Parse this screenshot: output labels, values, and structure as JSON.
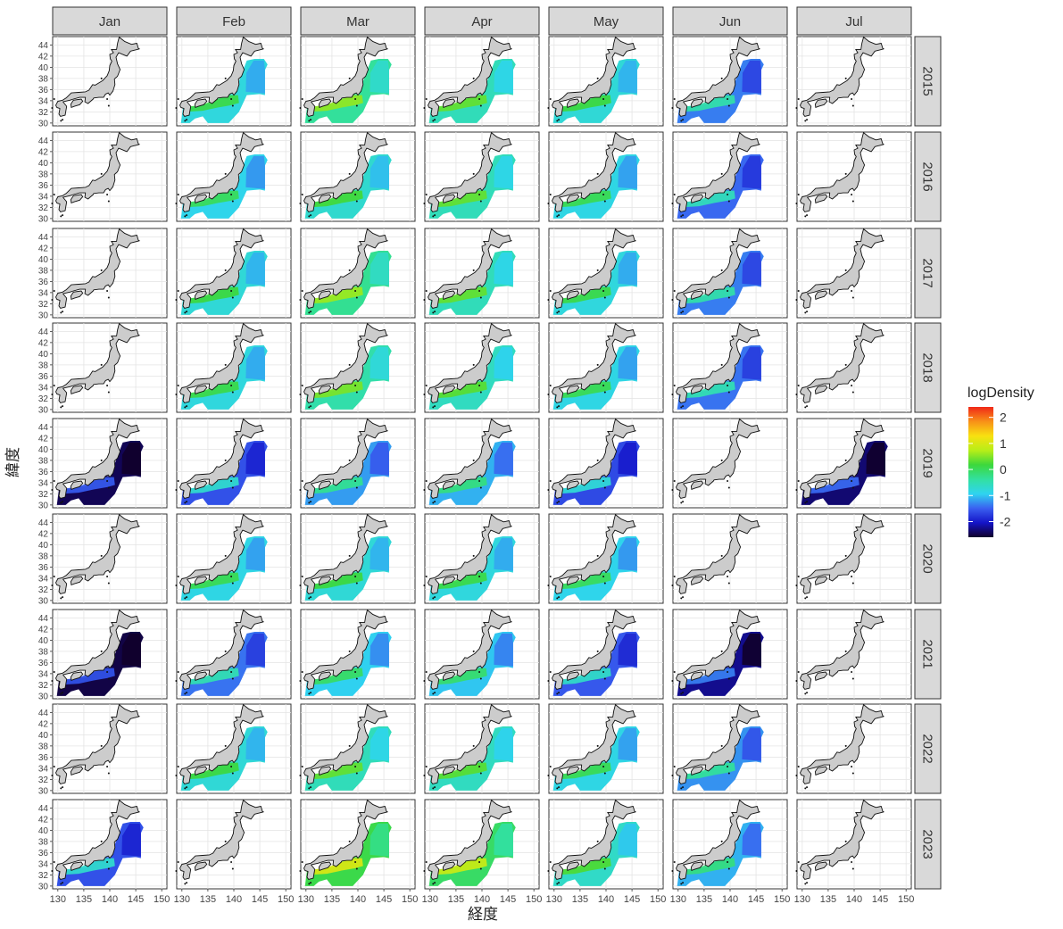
{
  "chart_data": {
    "type": "heatmap",
    "subtype": "faceted geographic grid",
    "xlabel": "経度",
    "ylabel": "緯度",
    "xlim": [
      129,
      151
    ],
    "ylim": [
      29.5,
      45.5
    ],
    "x_ticks": [
      "130",
      "135",
      "140",
      "145",
      "150"
    ],
    "y_ticks": [
      "30",
      "32",
      "34",
      "36",
      "38",
      "40",
      "42",
      "44"
    ],
    "columns": [
      "Jan",
      "Feb",
      "Mar",
      "Apr",
      "May",
      "Jun",
      "Jul"
    ],
    "rows": [
      "2015",
      "2016",
      "2017",
      "2018",
      "2019",
      "2020",
      "2021",
      "2022",
      "2023"
    ],
    "grid": true,
    "legend": {
      "title": "logDensity",
      "position": "right",
      "labels": [
        "2",
        "1",
        "0",
        "-1",
        "-2"
      ],
      "tick_values": [
        2,
        1,
        0,
        -1,
        -2
      ],
      "range": [
        -2.6,
        2.4
      ],
      "stops": [
        "#11002a",
        "#1414c8",
        "#3a60f0",
        "#2fd4f0",
        "#32e0a0",
        "#3cd83c",
        "#b8ee18",
        "#f8e010",
        "#f89018",
        "#f02818"
      ]
    },
    "map_fill": "#cccccc",
    "panel_values": [
      [
        null,
        -0.8,
        -0.35,
        -0.55,
        -0.75,
        -1.35,
        null
      ],
      [
        null,
        -0.9,
        -0.7,
        -0.55,
        -0.85,
        -1.45,
        null
      ],
      [
        null,
        -0.75,
        -0.3,
        -0.55,
        -0.8,
        -1.35,
        null
      ],
      [
        null,
        -0.8,
        -0.45,
        -0.6,
        -0.85,
        -1.4,
        null
      ],
      [
        -2.45,
        -1.6,
        -1.2,
        -1.1,
        -1.65,
        null,
        -2.35
      ],
      [
        null,
        -0.85,
        -0.75,
        -0.8,
        -0.9,
        null,
        null
      ],
      [
        -2.5,
        -1.4,
        -0.95,
        -1.0,
        -1.55,
        -2.25,
        null
      ],
      [
        null,
        -0.75,
        -0.55,
        -0.6,
        -0.85,
        -1.25,
        null
      ],
      [
        -1.6,
        null,
        0.1,
        -0.05,
        -0.65,
        -1.1,
        null
      ]
    ]
  }
}
